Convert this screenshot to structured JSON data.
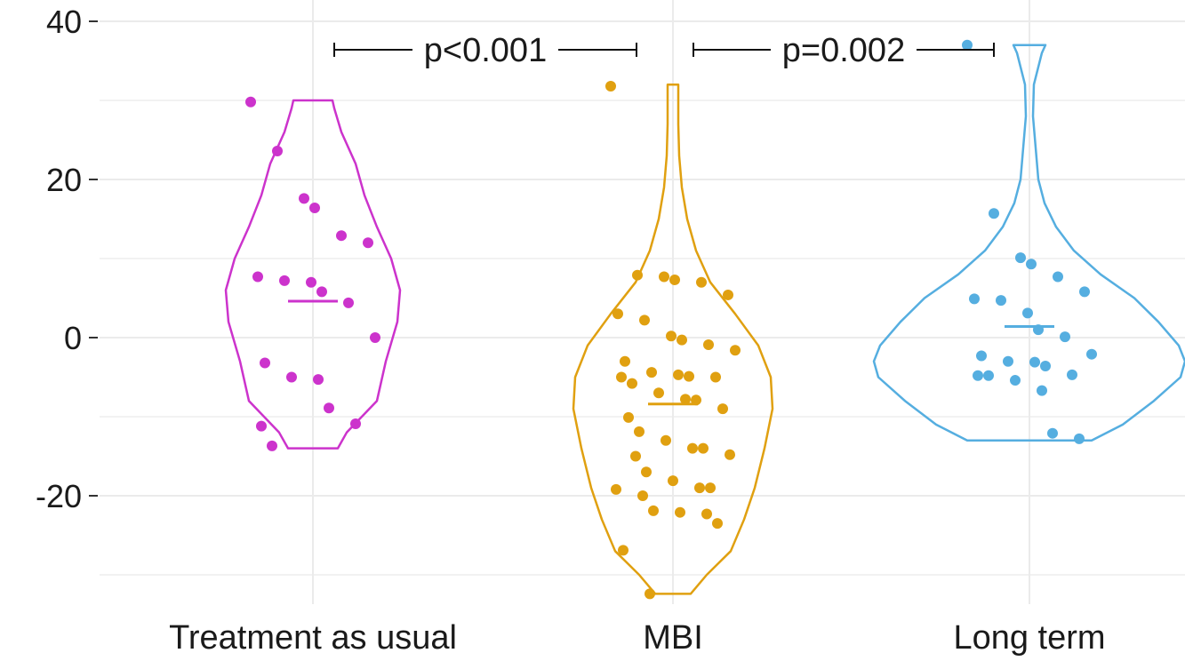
{
  "chart_data": {
    "type": "violin",
    "title": "",
    "xlabel": "",
    "ylabel": "",
    "ylim": [
      -32.5,
      40
    ],
    "yticks": [
      40,
      20,
      0,
      -20
    ],
    "grid": true,
    "categories": [
      "Treatment as usual",
      "MBI",
      "Long term"
    ],
    "colors": {
      "Treatment as usual": "#cc33cc",
      "MBI": "#e0a010",
      "Long term": "#55aee0"
    },
    "series": [
      {
        "name": "Treatment as usual",
        "range": [
          -14,
          30
        ],
        "mean": 4.6,
        "points": [
          29.8,
          23.6,
          17.6,
          16.4,
          12.9,
          12.0,
          7.7,
          7.2,
          7.0,
          5.8,
          4.4,
          0.0,
          -3.2,
          -5.0,
          -5.3,
          -8.9,
          -10.9,
          -11.2,
          -13.7
        ]
      },
      {
        "name": "MBI",
        "range": [
          -32.4,
          32
        ],
        "mean": -8.4,
        "points": [
          31.8,
          7.9,
          7.7,
          7.3,
          7.0,
          5.4,
          3.0,
          2.2,
          0.2,
          -0.3,
          -0.9,
          -1.6,
          -3.0,
          -4.4,
          -4.7,
          -4.9,
          -5.0,
          -5.0,
          -5.8,
          -7.0,
          -7.8,
          -7.9,
          -9.0,
          -10.1,
          -11.9,
          -13.0,
          -14.0,
          -14.0,
          -14.8,
          -15.0,
          -17.0,
          -18.1,
          -19.0,
          -19.0,
          -19.2,
          -20.0,
          -21.9,
          -22.1,
          -22.3,
          -23.5,
          -26.9,
          -32.4
        ]
      },
      {
        "name": "Long term",
        "range": [
          -13,
          37
        ],
        "mean": 1.4,
        "points": [
          37.0,
          15.7,
          10.1,
          9.3,
          7.7,
          5.8,
          4.9,
          4.7,
          3.1,
          1.0,
          0.1,
          -2.1,
          -2.3,
          -3.0,
          -3.1,
          -3.6,
          -4.7,
          -4.8,
          -4.8,
          -5.4,
          -6.7,
          -12.1,
          -12.8
        ]
      }
    ],
    "comparisons": [
      {
        "from": "Treatment as usual",
        "to": "MBI",
        "label": "p<0.001"
      },
      {
        "from": "MBI",
        "to": "Long term",
        "label": "p=0.002"
      }
    ]
  }
}
